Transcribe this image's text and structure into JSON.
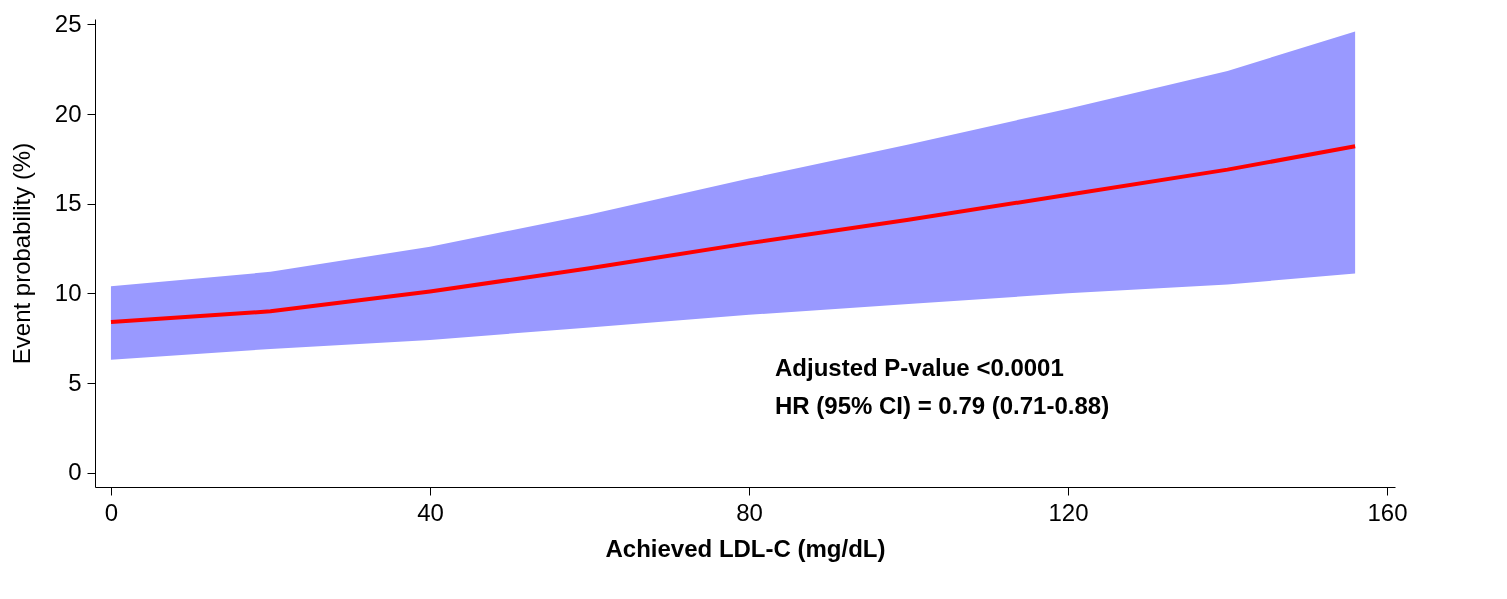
{
  "chart_data": {
    "type": "line",
    "xlabel": "Achieved LDL-C (mg/dL)",
    "ylabel": "Event probability (%)",
    "x": [
      0,
      20,
      40,
      60,
      80,
      100,
      120,
      140,
      156
    ],
    "series": [
      {
        "color": "#ff0000",
        "values": [
          8.4,
          9.0,
          10.1,
          11.4,
          12.8,
          14.1,
          15.5,
          16.9,
          18.2
        ],
        "lower": [
          6.3,
          6.9,
          7.4,
          8.1,
          8.8,
          9.4,
          10.0,
          10.5,
          11.1
        ],
        "upper": [
          10.4,
          11.2,
          12.6,
          14.4,
          16.4,
          18.3,
          20.3,
          22.4,
          24.6
        ]
      }
    ],
    "xlim": [
      -2,
      161
    ],
    "ylim": [
      -0.8,
      25.3
    ],
    "xticks": [
      0,
      40,
      80,
      120,
      160
    ],
    "yticks": [
      0,
      5,
      10,
      15,
      20,
      25
    ],
    "grid": false,
    "marker": "none",
    "line_style": "solid",
    "annotations": [
      "Adjusted P-value <0.0001",
      "HR (95% CI) = 0.79 (0.71-0.88)"
    ]
  }
}
